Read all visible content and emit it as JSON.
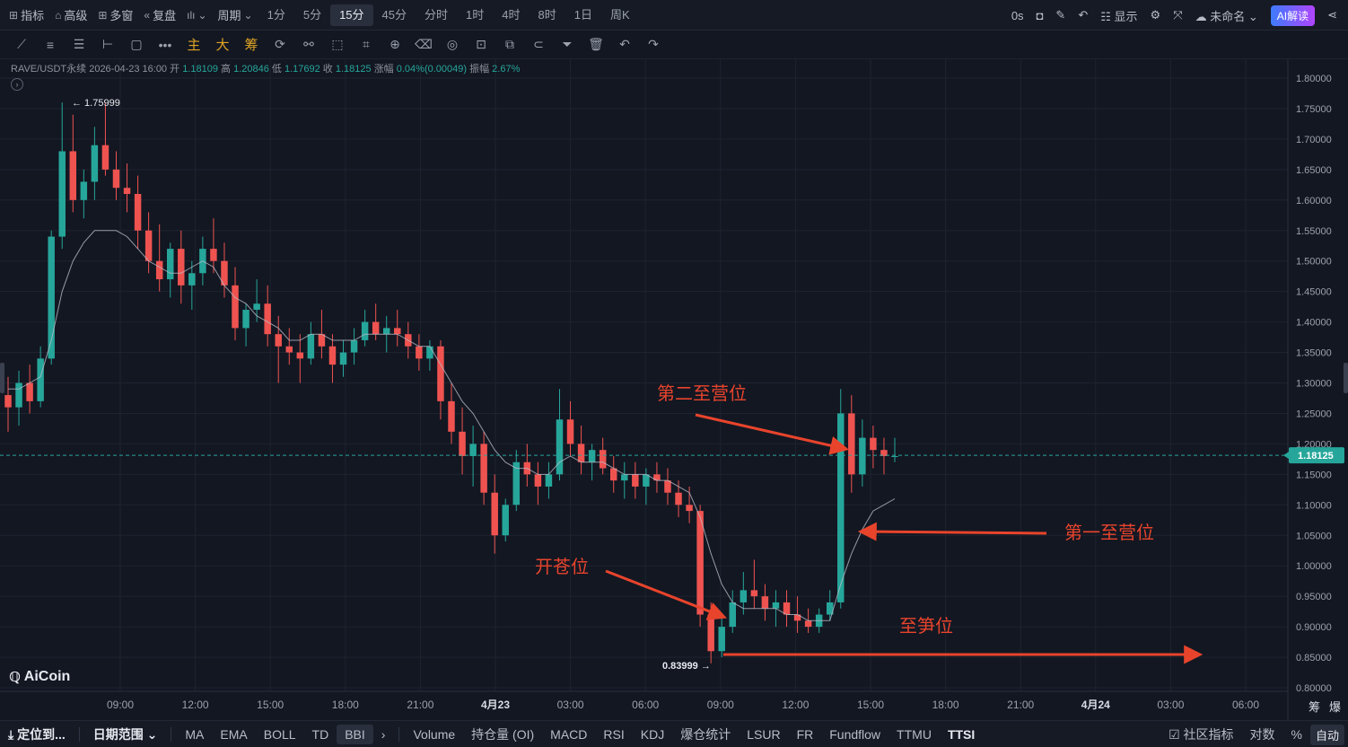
{
  "toolbar": {
    "indicators": "指标",
    "advanced": "高级",
    "multi_window": "多窗",
    "replay": "复盘",
    "period": "周期",
    "intervals": [
      "1分",
      "5分",
      "15分",
      "45分",
      "分时",
      "1时",
      "4时",
      "8时",
      "1日",
      "周K"
    ],
    "active_interval": "15分",
    "timer": "0s",
    "display": "显示",
    "layout_name": "未命名",
    "ai_button": "AI解读"
  },
  "drawing_tools": {
    "main": "主",
    "big": "大",
    "chips": "筹"
  },
  "ohlc": {
    "symbol": "RAVE/USDT永续",
    "datetime": "2026-04-23 16:00",
    "open_label": "开",
    "open": "1.18109",
    "high_label": "高",
    "high": "1.20846",
    "low_label": "低",
    "low": "1.17692",
    "close_label": "收",
    "close": "1.18125",
    "change_label": "涨幅",
    "change": "0.04%(0.00049)",
    "amplitude_label": "振幅",
    "amplitude": "2.67%"
  },
  "logo": "AiCoin",
  "chart_data": {
    "type": "candlestick",
    "interval": "15m",
    "y_ticks": [
      "1.80000",
      "1.75000",
      "1.70000",
      "1.65000",
      "1.60000",
      "1.55000",
      "1.50000",
      "1.45000",
      "1.40000",
      "1.35000",
      "1.30000",
      "1.25000",
      "1.20000",
      "1.15000",
      "1.10000",
      "1.05000",
      "1.00000",
      "0.95000",
      "0.90000",
      "0.85000",
      "0.80000"
    ],
    "ylim": [
      0.8,
      1.8
    ],
    "x_ticks": [
      "09:00",
      "12:00",
      "15:00",
      "18:00",
      "21:00",
      "4月23",
      "03:00",
      "06:00",
      "09:00",
      "12:00",
      "15:00",
      "18:00",
      "21:00",
      "4月24",
      "03:00",
      "06:00"
    ],
    "current_price": "1.18125",
    "high_marker": "1.75999",
    "low_marker": "0.83999",
    "annotations": {
      "second_profit": "第二至营位",
      "first_profit": "第一至营位",
      "entry": "开苍位",
      "stop": "至笋位"
    },
    "candles": [
      [
        1.28,
        1.31,
        1.22,
        1.26
      ],
      [
        1.26,
        1.32,
        1.23,
        1.3
      ],
      [
        1.3,
        1.33,
        1.25,
        1.27
      ],
      [
        1.27,
        1.36,
        1.26,
        1.34
      ],
      [
        1.34,
        1.55,
        1.33,
        1.54
      ],
      [
        1.54,
        1.76,
        1.52,
        1.68
      ],
      [
        1.68,
        1.74,
        1.58,
        1.6
      ],
      [
        1.6,
        1.65,
        1.57,
        1.63
      ],
      [
        1.63,
        1.72,
        1.6,
        1.69
      ],
      [
        1.69,
        1.76,
        1.64,
        1.65
      ],
      [
        1.65,
        1.68,
        1.6,
        1.62
      ],
      [
        1.62,
        1.66,
        1.58,
        1.61
      ],
      [
        1.61,
        1.64,
        1.52,
        1.55
      ],
      [
        1.55,
        1.58,
        1.48,
        1.5
      ],
      [
        1.5,
        1.56,
        1.45,
        1.47
      ],
      [
        1.47,
        1.53,
        1.44,
        1.52
      ],
      [
        1.52,
        1.55,
        1.43,
        1.46
      ],
      [
        1.46,
        1.5,
        1.42,
        1.48
      ],
      [
        1.48,
        1.54,
        1.46,
        1.52
      ],
      [
        1.52,
        1.57,
        1.48,
        1.5
      ],
      [
        1.5,
        1.53,
        1.44,
        1.46
      ],
      [
        1.46,
        1.49,
        1.37,
        1.39
      ],
      [
        1.39,
        1.43,
        1.36,
        1.42
      ],
      [
        1.42,
        1.47,
        1.4,
        1.43
      ],
      [
        1.43,
        1.46,
        1.36,
        1.38
      ],
      [
        1.38,
        1.41,
        1.3,
        1.36
      ],
      [
        1.36,
        1.39,
        1.33,
        1.35
      ],
      [
        1.35,
        1.38,
        1.3,
        1.34
      ],
      [
        1.34,
        1.4,
        1.33,
        1.38
      ],
      [
        1.38,
        1.42,
        1.34,
        1.36
      ],
      [
        1.36,
        1.38,
        1.3,
        1.33
      ],
      [
        1.33,
        1.37,
        1.31,
        1.35
      ],
      [
        1.35,
        1.39,
        1.33,
        1.37
      ],
      [
        1.37,
        1.42,
        1.36,
        1.4
      ],
      [
        1.4,
        1.43,
        1.37,
        1.38
      ],
      [
        1.38,
        1.41,
        1.35,
        1.39
      ],
      [
        1.39,
        1.42,
        1.36,
        1.38
      ],
      [
        1.38,
        1.4,
        1.34,
        1.36
      ],
      [
        1.36,
        1.38,
        1.32,
        1.34
      ],
      [
        1.34,
        1.37,
        1.32,
        1.36
      ],
      [
        1.36,
        1.37,
        1.24,
        1.27
      ],
      [
        1.27,
        1.3,
        1.2,
        1.22
      ],
      [
        1.22,
        1.26,
        1.15,
        1.18
      ],
      [
        1.18,
        1.23,
        1.13,
        1.2
      ],
      [
        1.2,
        1.22,
        1.1,
        1.12
      ],
      [
        1.12,
        1.15,
        1.02,
        1.05
      ],
      [
        1.05,
        1.11,
        1.04,
        1.1
      ],
      [
        1.1,
        1.19,
        1.09,
        1.17
      ],
      [
        1.17,
        1.2,
        1.13,
        1.15
      ],
      [
        1.15,
        1.17,
        1.1,
        1.13
      ],
      [
        1.13,
        1.17,
        1.11,
        1.15
      ],
      [
        1.15,
        1.29,
        1.14,
        1.24
      ],
      [
        1.24,
        1.27,
        1.18,
        1.2
      ],
      [
        1.2,
        1.23,
        1.15,
        1.17
      ],
      [
        1.17,
        1.2,
        1.14,
        1.19
      ],
      [
        1.19,
        1.21,
        1.15,
        1.16
      ],
      [
        1.16,
        1.18,
        1.12,
        1.14
      ],
      [
        1.14,
        1.17,
        1.11,
        1.15
      ],
      [
        1.15,
        1.17,
        1.11,
        1.13
      ],
      [
        1.13,
        1.16,
        1.1,
        1.15
      ],
      [
        1.15,
        1.17,
        1.12,
        1.14
      ],
      [
        1.14,
        1.16,
        1.1,
        1.12
      ],
      [
        1.12,
        1.14,
        1.08,
        1.1
      ],
      [
        1.1,
        1.13,
        1.07,
        1.09
      ],
      [
        1.09,
        1.1,
        0.9,
        0.92
      ],
      [
        0.92,
        0.94,
        0.84,
        0.86
      ],
      [
        0.86,
        0.92,
        0.85,
        0.9
      ],
      [
        0.9,
        0.96,
        0.89,
        0.94
      ],
      [
        0.94,
        0.99,
        0.92,
        0.96
      ],
      [
        0.96,
        1.01,
        0.93,
        0.95
      ],
      [
        0.95,
        0.97,
        0.91,
        0.93
      ],
      [
        0.93,
        0.96,
        0.9,
        0.94
      ],
      [
        0.94,
        0.96,
        0.9,
        0.92
      ],
      [
        0.92,
        0.95,
        0.89,
        0.91
      ],
      [
        0.91,
        0.93,
        0.89,
        0.9
      ],
      [
        0.9,
        0.93,
        0.89,
        0.92
      ],
      [
        0.92,
        0.96,
        0.91,
        0.94
      ],
      [
        0.94,
        1.29,
        0.93,
        1.25
      ],
      [
        1.25,
        1.28,
        1.12,
        1.15
      ],
      [
        1.15,
        1.24,
        1.13,
        1.21
      ],
      [
        1.21,
        1.23,
        1.16,
        1.19
      ],
      [
        1.19,
        1.21,
        1.15,
        1.18
      ],
      [
        1.18,
        1.21,
        1.17,
        1.18
      ]
    ],
    "ma": [
      1.29,
      1.29,
      1.3,
      1.31,
      1.37,
      1.45,
      1.5,
      1.53,
      1.55,
      1.55,
      1.55,
      1.54,
      1.52,
      1.5,
      1.49,
      1.48,
      1.48,
      1.49,
      1.5,
      1.49,
      1.46,
      1.44,
      1.43,
      1.41,
      1.4,
      1.39,
      1.37,
      1.37,
      1.38,
      1.38,
      1.37,
      1.37,
      1.37,
      1.38,
      1.38,
      1.38,
      1.38,
      1.37,
      1.36,
      1.36,
      1.33,
      1.3,
      1.27,
      1.25,
      1.22,
      1.19,
      1.17,
      1.16,
      1.16,
      1.15,
      1.15,
      1.17,
      1.18,
      1.17,
      1.17,
      1.17,
      1.16,
      1.15,
      1.15,
      1.15,
      1.14,
      1.14,
      1.13,
      1.12,
      1.08,
      1.02,
      0.97,
      0.94,
      0.93,
      0.93,
      0.93,
      0.93,
      0.92,
      0.92,
      0.91,
      0.91,
      0.91,
      0.97,
      1.02,
      1.06,
      1.09,
      1.1,
      1.11
    ]
  },
  "bottom": {
    "locate": "定位到...",
    "date_range": "日期范围",
    "indicators": [
      "MA",
      "EMA",
      "BOLL",
      "TD",
      "BBI"
    ],
    "active_indicator": "BBI",
    "sub_indicators": [
      "Volume",
      "持仓量 (OI)",
      "MACD",
      "RSI",
      "KDJ",
      "爆仓统计",
      "LSUR",
      "FR",
      "Fundflow",
      "TTMU",
      "TTSI"
    ],
    "community": "社区指标",
    "log": "对数",
    "percent": "%",
    "auto": "自动",
    "corner_a": "筹",
    "corner_b": "爆"
  },
  "colors": {
    "up": "#26a69a",
    "down": "#ef5350",
    "annotation": "#e8442c",
    "current_price_bg": "#26a69a"
  }
}
